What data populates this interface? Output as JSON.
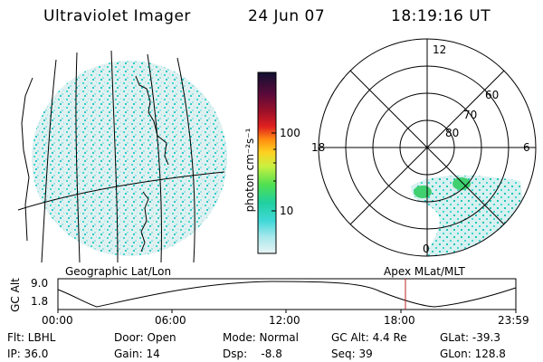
{
  "header": {
    "title": "Ultraviolet Imager",
    "date": "24 Jun 07",
    "time": "18:19:16 UT"
  },
  "colorbar": {
    "unit_label": "photon cm⁻²s⁻¹",
    "ticks": [
      "100",
      "10"
    ],
    "colors": [
      "#101030",
      "#3a0a3a",
      "#7a0a2a",
      "#b01020",
      "#e02020",
      "#ff8c10",
      "#ffd020",
      "#c8f040",
      "#50e050",
      "#20d0a0",
      "#40d8d8",
      "#a8e8ec",
      "#e8f4f4"
    ]
  },
  "map_panel": {
    "label": "Geographic Lat/Lon"
  },
  "polar_panel": {
    "label": "Apex MLat/MLT",
    "mlt_labels": [
      "12",
      "18",
      "6",
      "0"
    ],
    "lat_labels": [
      "60",
      "70",
      "80"
    ]
  },
  "altitude_plot": {
    "ylabel": "GC Alt",
    "yticks": [
      "9.0",
      "1.8"
    ],
    "xticks": [
      "00:00",
      "06:00",
      "12:00",
      "18:00",
      "23:59"
    ],
    "marker_time": "18:19"
  },
  "info": {
    "flt": "Flt: LBHL",
    "ip": "IP: 36.0",
    "door": "Door: Open",
    "gain": "Gain: 14",
    "mode": "Mode: Normal",
    "dsp": "Dsp:    -8.8",
    "gcalt": "GC Alt: 4.4 Re",
    "seq": "Seq: 39",
    "glat": "GLat: -39.3",
    "glon": "GLon: 128.8"
  }
}
